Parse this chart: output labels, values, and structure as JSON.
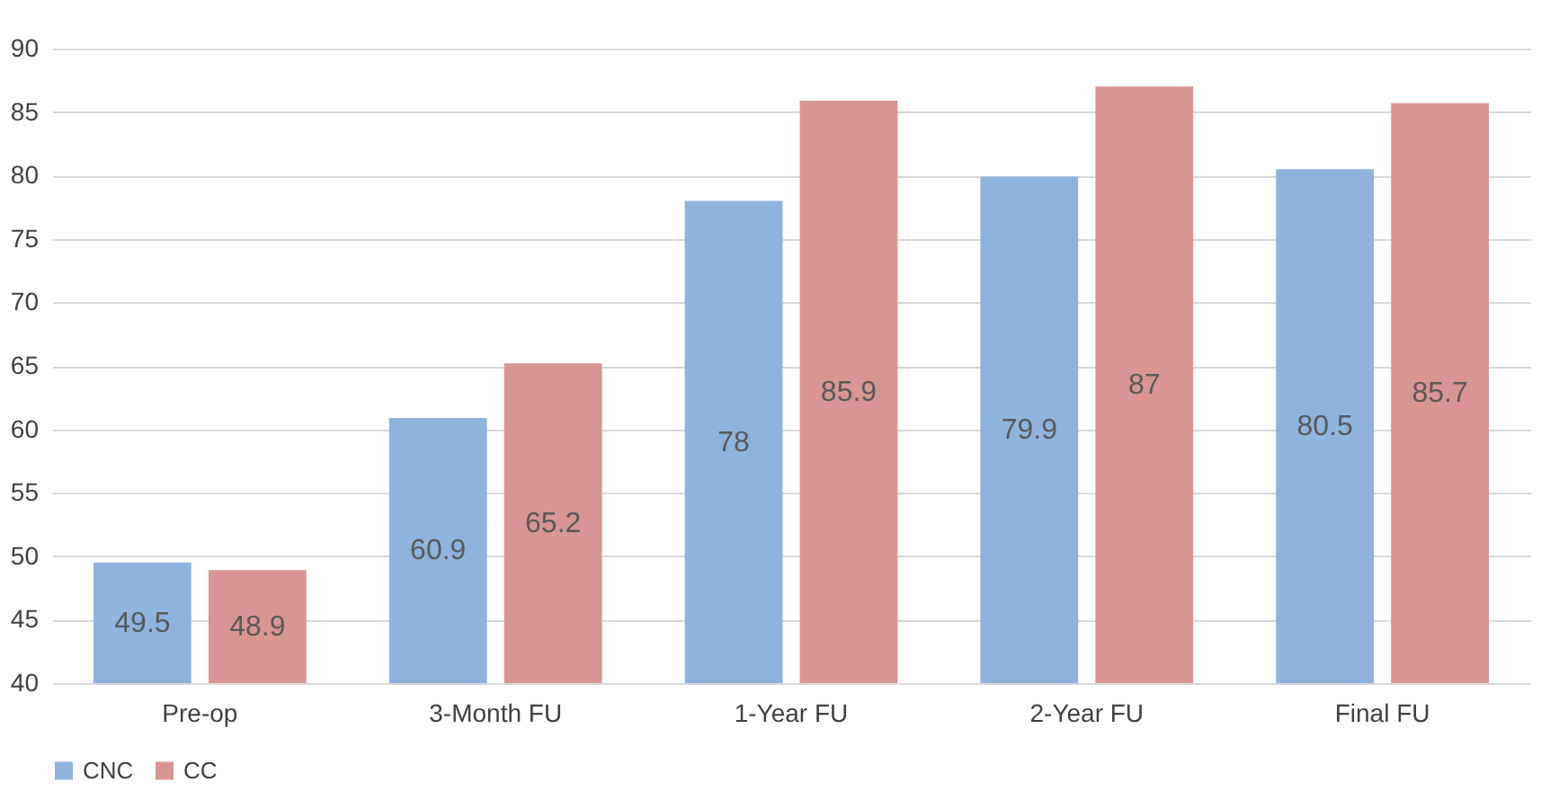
{
  "chart_data": {
    "type": "bar",
    "categories": [
      "Pre-op",
      "3-Month FU",
      "1-Year FU",
      "2-Year FU",
      "Final FU"
    ],
    "series": [
      {
        "name": "CNC",
        "color": "#8eb4de",
        "values": [
          49.5,
          60.9,
          78,
          79.9,
          80.5
        ]
      },
      {
        "name": "CC",
        "color": "#d99594",
        "values": [
          48.9,
          65.2,
          85.9,
          87,
          85.7
        ]
      }
    ],
    "ylim": [
      40,
      90
    ],
    "yticks": [
      40,
      45,
      50,
      55,
      60,
      65,
      70,
      75,
      80,
      85,
      90
    ],
    "grid": "y",
    "legend": "bottom",
    "data_labels": true
  }
}
